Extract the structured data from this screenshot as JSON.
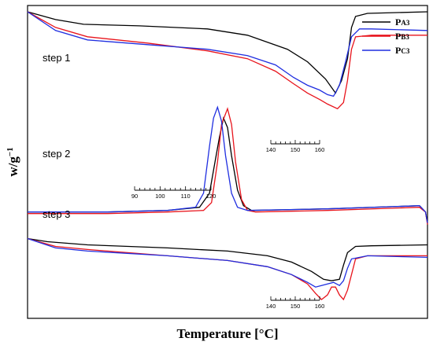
{
  "chart_data": {
    "type": "line",
    "xlabel": "Temperature [°C]",
    "ylabel_main": "w/g",
    "ylabel_sup": "−1",
    "colors": {
      "P_A3": "#000000",
      "P_B3": "#e8141c",
      "P_C3": "#1f2ee0"
    },
    "legend": {
      "placement": "top-right",
      "entries": [
        {
          "key": "P_A3",
          "main": "P",
          "sub": "A3"
        },
        {
          "key": "P_B3",
          "main": "P",
          "sub": "B3"
        },
        {
          "key": "P_C3",
          "main": "P",
          "sub": "C3"
        }
      ]
    },
    "panels": [
      {
        "step": "step 1",
        "inset_axis": {
          "min": 140,
          "max": 160,
          "ticks": [
            140,
            150,
            160
          ]
        },
        "series": [
          {
            "key": "P_A3",
            "points": [
              [
                0,
                0.02
              ],
              [
                0.07,
                0.045
              ],
              [
                0.14,
                0.06
              ],
              [
                0.28,
                0.065
              ],
              [
                0.45,
                0.075
              ],
              [
                0.55,
                0.095
              ],
              [
                0.65,
                0.14
              ],
              [
                0.7,
                0.18
              ],
              [
                0.745,
                0.235
              ],
              [
                0.77,
                0.28
              ],
              [
                0.785,
                0.24
              ],
              [
                0.8,
                0.17
              ],
              [
                0.81,
                0.07
              ],
              [
                0.82,
                0.035
              ],
              [
                0.85,
                0.025
              ],
              [
                1,
                0.02
              ]
            ]
          },
          {
            "key": "P_B3",
            "points": [
              [
                0,
                0.02
              ],
              [
                0.07,
                0.07
              ],
              [
                0.15,
                0.1
              ],
              [
                0.3,
                0.12
              ],
              [
                0.45,
                0.145
              ],
              [
                0.55,
                0.17
              ],
              [
                0.62,
                0.21
              ],
              [
                0.665,
                0.25
              ],
              [
                0.7,
                0.28
              ],
              [
                0.73,
                0.3
              ],
              [
                0.75,
                0.315
              ],
              [
                0.775,
                0.33
              ],
              [
                0.79,
                0.31
              ],
              [
                0.8,
                0.24
              ],
              [
                0.81,
                0.14
              ],
              [
                0.82,
                0.1
              ],
              [
                0.86,
                0.095
              ],
              [
                1,
                0.095
              ]
            ]
          },
          {
            "key": "P_C3",
            "points": [
              [
                0,
                0.02
              ],
              [
                0.07,
                0.08
              ],
              [
                0.15,
                0.11
              ],
              [
                0.3,
                0.125
              ],
              [
                0.45,
                0.14
              ],
              [
                0.55,
                0.16
              ],
              [
                0.62,
                0.19
              ],
              [
                0.665,
                0.23
              ],
              [
                0.7,
                0.255
              ],
              [
                0.73,
                0.27
              ],
              [
                0.75,
                0.285
              ],
              [
                0.765,
                0.29
              ],
              [
                0.78,
                0.255
              ],
              [
                0.795,
                0.18
              ],
              [
                0.81,
                0.1
              ],
              [
                0.83,
                0.075
              ],
              [
                0.86,
                0.075
              ],
              [
                1,
                0.08
              ]
            ]
          }
        ]
      },
      {
        "step": "step 2",
        "inset_axis": {
          "min": 90,
          "max": 120,
          "ticks": [
            90,
            100,
            110,
            120
          ]
        },
        "series": [
          {
            "key": "P_A3",
            "points": [
              [
                0,
                0.66
              ],
              [
                0.2,
                0.66
              ],
              [
                0.35,
                0.655
              ],
              [
                0.43,
                0.645
              ],
              [
                0.455,
                0.6
              ],
              [
                0.47,
                0.49
              ],
              [
                0.48,
                0.42
              ],
              [
                0.49,
                0.36
              ],
              [
                0.5,
                0.39
              ],
              [
                0.51,
                0.48
              ],
              [
                0.525,
                0.59
              ],
              [
                0.54,
                0.64
              ],
              [
                0.56,
                0.655
              ],
              [
                0.75,
                0.65
              ],
              [
                0.98,
                0.64
              ],
              [
                0.995,
                0.66
              ],
              [
                1,
                0.695
              ]
            ]
          },
          {
            "key": "P_B3",
            "points": [
              [
                0,
                0.665
              ],
              [
                0.2,
                0.665
              ],
              [
                0.35,
                0.66
              ],
              [
                0.44,
                0.655
              ],
              [
                0.46,
                0.63
              ],
              [
                0.475,
                0.5
              ],
              [
                0.485,
                0.38
              ],
              [
                0.5,
                0.33
              ],
              [
                0.51,
                0.38
              ],
              [
                0.52,
                0.5
              ],
              [
                0.535,
                0.62
              ],
              [
                0.55,
                0.655
              ],
              [
                0.57,
                0.66
              ],
              [
                0.75,
                0.655
              ],
              [
                0.98,
                0.645
              ],
              [
                0.995,
                0.66
              ],
              [
                1,
                0.7
              ]
            ]
          },
          {
            "key": "P_C3",
            "points": [
              [
                0,
                0.66
              ],
              [
                0.2,
                0.66
              ],
              [
                0.35,
                0.655
              ],
              [
                0.42,
                0.645
              ],
              [
                0.44,
                0.6
              ],
              [
                0.455,
                0.45
              ],
              [
                0.465,
                0.36
              ],
              [
                0.475,
                0.325
              ],
              [
                0.485,
                0.37
              ],
              [
                0.495,
                0.48
              ],
              [
                0.51,
                0.6
              ],
              [
                0.525,
                0.645
              ],
              [
                0.55,
                0.655
              ],
              [
                0.75,
                0.65
              ],
              [
                0.98,
                0.64
              ],
              [
                0.995,
                0.66
              ],
              [
                1,
                0.695
              ]
            ]
          }
        ]
      },
      {
        "step": "step 3",
        "inset_axis": {
          "min": 140,
          "max": 160,
          "ticks": [
            140,
            150,
            160
          ]
        },
        "series": [
          {
            "key": "P_A3",
            "points": [
              [
                0,
                0.745
              ],
              [
                0.05,
                0.755
              ],
              [
                0.15,
                0.765
              ],
              [
                0.35,
                0.775
              ],
              [
                0.5,
                0.785
              ],
              [
                0.6,
                0.8
              ],
              [
                0.66,
                0.82
              ],
              [
                0.71,
                0.85
              ],
              [
                0.74,
                0.875
              ],
              [
                0.76,
                0.88
              ],
              [
                0.78,
                0.875
              ],
              [
                0.79,
                0.83
              ],
              [
                0.8,
                0.79
              ],
              [
                0.82,
                0.77
              ],
              [
                0.86,
                0.768
              ],
              [
                1,
                0.765
              ]
            ]
          },
          {
            "key": "P_B3",
            "points": [
              [
                0,
                0.745
              ],
              [
                0.07,
                0.77
              ],
              [
                0.15,
                0.78
              ],
              [
                0.35,
                0.8
              ],
              [
                0.5,
                0.815
              ],
              [
                0.6,
                0.835
              ],
              [
                0.66,
                0.86
              ],
              [
                0.7,
                0.89
              ],
              [
                0.72,
                0.92
              ],
              [
                0.735,
                0.94
              ],
              [
                0.75,
                0.925
              ],
              [
                0.76,
                0.9
              ],
              [
                0.77,
                0.9
              ],
              [
                0.78,
                0.925
              ],
              [
                0.79,
                0.94
              ],
              [
                0.8,
                0.91
              ],
              [
                0.81,
                0.86
              ],
              [
                0.82,
                0.81
              ],
              [
                0.85,
                0.8
              ],
              [
                1,
                0.8
              ]
            ]
          },
          {
            "key": "P_C3",
            "points": [
              [
                0,
                0.745
              ],
              [
                0.07,
                0.775
              ],
              [
                0.15,
                0.785
              ],
              [
                0.35,
                0.8
              ],
              [
                0.5,
                0.815
              ],
              [
                0.6,
                0.835
              ],
              [
                0.66,
                0.86
              ],
              [
                0.7,
                0.885
              ],
              [
                0.72,
                0.9
              ],
              [
                0.735,
                0.895
              ],
              [
                0.75,
                0.89
              ],
              [
                0.765,
                0.885
              ],
              [
                0.78,
                0.895
              ],
              [
                0.79,
                0.88
              ],
              [
                0.8,
                0.84
              ],
              [
                0.81,
                0.81
              ],
              [
                0.85,
                0.8
              ],
              [
                1,
                0.805
              ]
            ]
          }
        ]
      }
    ]
  }
}
